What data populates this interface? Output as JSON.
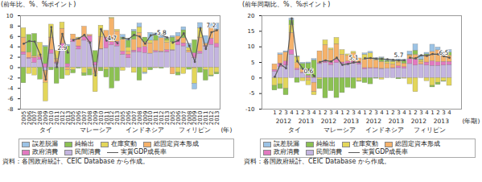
{
  "chart_data": [
    {
      "type": "bar",
      "stacked": true,
      "grid": false,
      "legend": "bottom",
      "y_label": "(前年比、%、%ポイント)",
      "x_label": "(年)",
      "source": "資料：各国政府統計、CEIC Database から作成。",
      "categories": [
        "2005",
        "2006",
        "2007",
        "2008",
        "2009",
        "2010",
        "2011",
        "2012",
        "2013",
        "2005",
        "2006",
        "2007",
        "2008",
        "2009",
        "2010",
        "2011",
        "2012",
        "2013",
        "2005",
        "2006",
        "2007",
        "2008",
        "2009",
        "2010",
        "2011",
        "2012",
        "2013",
        "2005",
        "2006",
        "2007",
        "2008",
        "2009",
        "2010",
        "2011",
        "2012",
        "2013"
      ],
      "groups": [
        {
          "name": "タイ",
          "count": 9
        },
        {
          "name": "マレーシア",
          "count": 9
        },
        {
          "name": "インドネシア",
          "count": 9
        },
        {
          "name": "フィリピン",
          "count": 9
        }
      ],
      "ylim": [
        -8,
        10
      ],
      "yticks": [
        -8,
        -6,
        -4,
        -2,
        0,
        2,
        4,
        6,
        8,
        10
      ],
      "series": [
        {
          "name": "誤差脱漏",
          "color": "#9cc3e5",
          "values": [
            0,
            0,
            0,
            0,
            0.2,
            0,
            0,
            0,
            0.3,
            0,
            0,
            0,
            0,
            0,
            0,
            0,
            0,
            0,
            0.5,
            0.3,
            0.3,
            0.7,
            -0.2,
            1.5,
            0.4,
            0.8,
            0.2,
            0.3,
            0.7,
            0.6,
            0.8,
            -1.1,
            1.0,
            1.5,
            0.9,
            1.2
          ]
        },
        {
          "name": "純輸出",
          "color": "#8cc152",
          "values": [
            -3.0,
            3.4,
            4.3,
            -2.3,
            3.3,
            -0.5,
            -3.1,
            -2.2,
            3.4,
            -0.6,
            -0.2,
            -0.5,
            -1.2,
            2.2,
            -0.7,
            -1.5,
            -4.0,
            -2.6,
            0.4,
            1.3,
            1.6,
            -2.5,
            0.9,
            -0.5,
            1.0,
            -0.2,
            0.4,
            0.9,
            -0.5,
            1.5,
            -0.4,
            2.5,
            -1.0,
            -2.0,
            -0.2,
            -0.3
          ]
        },
        {
          "name": "在庫変動",
          "color": "#e3d65a",
          "values": [
            1.8,
            -1.2,
            -1.5,
            2.5,
            -3.6,
            2.5,
            1.5,
            1.2,
            -1.0,
            -0.5,
            0.2,
            -1.1,
            -0.3,
            -3.5,
            2.2,
            -0.4,
            0.2,
            0.3,
            -0.6,
            0.8,
            -1.0,
            1.1,
            -1.0,
            0.5,
            -0.1,
            0.0,
            0.4,
            1.5,
            -1.0,
            -1.2,
            0.5,
            -3.0,
            1.8,
            -0.5,
            -1.5,
            -1.0
          ]
        },
        {
          "name": "総固定資本形成",
          "color": "#f5b26b",
          "values": [
            2.8,
            1.0,
            0.3,
            0.3,
            -2.3,
            2.4,
            0.7,
            2.9,
            -0.5,
            1.0,
            1.5,
            2.0,
            0.2,
            -1.2,
            2.3,
            1.3,
            4.5,
            2.0,
            2.3,
            0.6,
            2.1,
            2.9,
            0.9,
            2.0,
            2.0,
            2.6,
            1.4,
            -1.3,
            0.7,
            1.0,
            0.4,
            -0.1,
            2.7,
            0.4,
            2.0,
            2.7
          ]
        },
        {
          "name": "政府消費",
          "color": "#e27ac0",
          "values": [
            0.5,
            0.2,
            1.0,
            0.5,
            0.7,
            0.7,
            0.2,
            1.0,
            0.6,
            0.5,
            0.6,
            0.7,
            1.2,
            0.6,
            0.1,
            2.1,
            0.6,
            0.9,
            0.6,
            0.7,
            0.3,
            0.8,
            1.2,
            0.0,
            0.2,
            0.1,
            0.4,
            0.1,
            1.0,
            0.6,
            0.0,
            1.0,
            0.4,
            0.2,
            1.2,
            0.7
          ]
        },
        {
          "name": "民間消費",
          "color": "#c4b5e0",
          "values": [
            2.5,
            1.7,
            0.9,
            1.5,
            -0.6,
            2.7,
            0.8,
            3.6,
            0.1,
            4.9,
            3.5,
            5.2,
            4.9,
            0.4,
            3.5,
            3.7,
            4.3,
            4.1,
            2.5,
            1.8,
            3.0,
            3.0,
            2.8,
            2.7,
            3.0,
            3.0,
            3.0,
            3.3,
            4.3,
            4.1,
            2.9,
            1.8,
            2.7,
            4.0,
            4.4,
            3.9
          ]
        },
        {
          "name": "実質GDP成長率",
          "type": "line",
          "color": "#5a5a5a",
          "marker": "circle",
          "values": [
            4.6,
            5.1,
            5.0,
            2.5,
            -2.3,
            7.8,
            0.1,
            6.5,
            2.9,
            5.3,
            5.6,
            6.3,
            4.8,
            -1.5,
            7.4,
            5.2,
            5.6,
            4.7,
            5.7,
            5.5,
            6.3,
            6.0,
            4.6,
            6.2,
            6.5,
            6.3,
            5.8,
            4.8,
            5.2,
            6.6,
            4.2,
            1.1,
            7.6,
            3.6,
            6.8,
            7.2
          ],
          "value_labels": [
            null,
            null,
            null,
            null,
            null,
            null,
            null,
            null,
            "2.9",
            null,
            null,
            null,
            null,
            null,
            null,
            null,
            null,
            "4.7",
            null,
            null,
            null,
            null,
            null,
            null,
            null,
            null,
            "5.8",
            null,
            null,
            null,
            null,
            null,
            null,
            null,
            null,
            "7.2"
          ]
        }
      ]
    },
    {
      "type": "bar",
      "stacked": true,
      "grid": false,
      "legend": "bottom",
      "y_label": "(前年同期比、%、%ポイント)",
      "x_label": "(年期)",
      "source": "資料：各国政府統計、CEIC Database から作成。",
      "categories": [
        "1",
        "2",
        "3",
        "4",
        "1",
        "2",
        "3",
        "4",
        "1",
        "2",
        "3",
        "4",
        "1",
        "2",
        "3",
        "4",
        "1",
        "2",
        "3",
        "4",
        "1",
        "2",
        "3",
        "4",
        "1",
        "2",
        "3",
        "4",
        "1",
        "2",
        "3",
        "4"
      ],
      "subgroups": [
        {
          "name": "2012",
          "count": 4
        },
        {
          "name": "2013",
          "count": 4
        },
        {
          "name": "2012",
          "count": 4
        },
        {
          "name": "2013",
          "count": 4
        },
        {
          "name": "2012",
          "count": 4
        },
        {
          "name": "2013",
          "count": 4
        },
        {
          "name": "2012",
          "count": 4
        },
        {
          "name": "2013",
          "count": 4
        }
      ],
      "groups": [
        {
          "name": "タイ",
          "count": 8
        },
        {
          "name": "マレーシア",
          "count": 8
        },
        {
          "name": "インドネシア",
          "count": 8
        },
        {
          "name": "フィリピン",
          "count": 8
        }
      ],
      "ylim": [
        -10,
        20
      ],
      "yticks": [
        -10,
        -5,
        0,
        5,
        10,
        15,
        20
      ],
      "series": [
        {
          "name": "誤差脱漏",
          "color": "#9cc3e5",
          "values": [
            0.0,
            0.4,
            0.3,
            0.6,
            0.1,
            0.3,
            0.3,
            0.4,
            0,
            0,
            0,
            0,
            0,
            0,
            0,
            0,
            0.4,
            0.4,
            0.5,
            0.2,
            0.5,
            0.4,
            0.5,
            0.4,
            1.0,
            2.0,
            1.4,
            0.5,
            2.3,
            0.9,
            0.2,
            0.8
          ]
        },
        {
          "name": "純輸出",
          "color": "#8cc152",
          "values": [
            -1.5,
            -1.5,
            -2.0,
            1.5,
            -1.5,
            1.8,
            4.0,
            5.5,
            -3.0,
            -6.5,
            -4.2,
            -6.4,
            -4.8,
            -3.1,
            -3.4,
            -0.2,
            -1.6,
            -2.0,
            -0.2,
            1.2,
            0.4,
            0.2,
            -0.4,
            0.8,
            0.2,
            1.3,
            0.2,
            0.3,
            -0.5,
            -0.7,
            -0.2,
            1.0
          ]
        },
        {
          "name": "在庫変動",
          "color": "#e3d65a",
          "values": [
            -2.5,
            -2.0,
            -3.5,
            2.5,
            2.0,
            -1.0,
            -1.5,
            -1.0,
            -0.5,
            1.5,
            0.5,
            2.0,
            1.5,
            0.5,
            0.5,
            -1.0,
            1.5,
            1.8,
            0.2,
            -0.5,
            0.5,
            0.8,
            0.5,
            -0.2,
            -2.0,
            -4.5,
            0.5,
            -1.0,
            -2.5,
            -1.5,
            -1.0,
            -2.5
          ]
        },
        {
          "name": "総固定資本形成",
          "color": "#f5b26b",
          "values": [
            1.8,
            2.8,
            3.0,
            5.5,
            1.8,
            1.0,
            -0.8,
            -3.0,
            3.8,
            5.0,
            4.0,
            5.0,
            2.5,
            1.8,
            2.5,
            1.5,
            2.8,
            3.0,
            2.5,
            2.2,
            1.6,
            1.2,
            1.2,
            1.2,
            1.2,
            1.5,
            0.8,
            2.3,
            3.0,
            3.8,
            2.8,
            2.0
          ]
        },
        {
          "name": "政府消費",
          "color": "#e27ac0",
          "values": [
            0.6,
            1.2,
            1.3,
            1.5,
            0.5,
            0.3,
            0.4,
            0.2,
            0.3,
            0.8,
            0.8,
            1.1,
            0.5,
            0.8,
            0.8,
            0.5,
            0.4,
            0.2,
            0.2,
            0.1,
            0.0,
            0.2,
            0.6,
            0.5,
            1.6,
            2.0,
            0.1,
            1.0,
            1.5,
            1.2,
            1.2,
            1.0
          ]
        },
        {
          "name": "民間消費",
          "color": "#c4b5e0",
          "values": [
            2.0,
            3.5,
            4.0,
            7.5,
            2.5,
            1.5,
            0.3,
            -1.5,
            4.5,
            4.8,
            4.2,
            4.8,
            4.5,
            4.5,
            4.6,
            4.3,
            2.8,
            3.0,
            3.0,
            2.9,
            3.0,
            3.0,
            3.2,
            3.0,
            4.5,
            4.0,
            4.3,
            4.0,
            3.9,
            3.9,
            4.0,
            4.2
          ]
        },
        {
          "name": "実質GDP成長率",
          "type": "line",
          "color": "#5a5a5a",
          "marker": "circle",
          "values": [
            0.4,
            4.4,
            3.1,
            19.1,
            5.4,
            2.9,
            2.7,
            0.6,
            5.1,
            5.6,
            5.3,
            6.5,
            4.2,
            4.5,
            5.0,
            5.1,
            6.3,
            6.4,
            6.2,
            6.1,
            6.0,
            5.8,
            5.6,
            5.7,
            6.5,
            6.3,
            7.3,
            7.1,
            7.7,
            7.6,
            7.0,
            6.5
          ],
          "value_labels": [
            null,
            null,
            null,
            null,
            null,
            null,
            null,
            "0.6",
            null,
            null,
            null,
            null,
            null,
            null,
            null,
            "5.1",
            null,
            null,
            null,
            null,
            null,
            null,
            null,
            "5.7",
            null,
            null,
            null,
            null,
            null,
            null,
            null,
            "6.5"
          ]
        }
      ]
    }
  ]
}
